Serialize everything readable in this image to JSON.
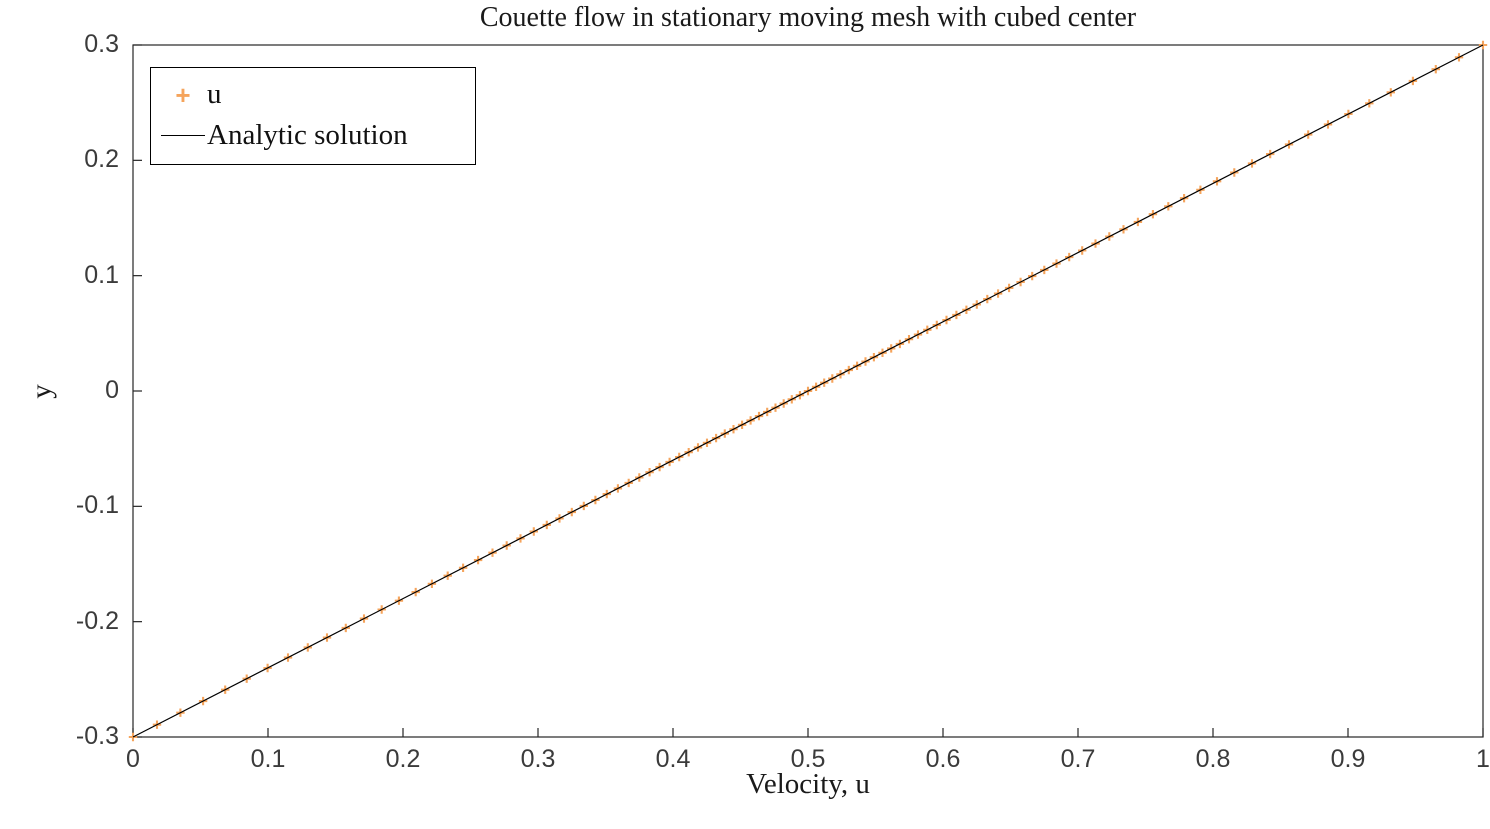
{
  "figure": {
    "background": "#ffffff"
  },
  "style": {
    "axis_color": "#262626",
    "tick_label_color": "#3b3b3b",
    "marker_color": "#F5A45C",
    "line_color": "#000000"
  },
  "chart_data": {
    "type": "scatter",
    "title": "Couette flow in stationary moving mesh with cubed center",
    "xlabel": "Velocity, u",
    "ylabel": "y",
    "xlim": [
      0,
      1
    ],
    "ylim": [
      -0.3,
      0.3
    ],
    "grid": false,
    "x_ticks": [
      0,
      0.1,
      0.2,
      0.3,
      0.4,
      0.5,
      0.6,
      0.7,
      0.8,
      0.9,
      1
    ],
    "x_tick_labels": [
      "0",
      "0.1",
      "0.2",
      "0.3",
      "0.4",
      "0.5",
      "0.6",
      "0.7",
      "0.8",
      "0.9",
      "1"
    ],
    "y_ticks": [
      -0.3,
      -0.2,
      -0.1,
      0,
      0.1,
      0.2,
      0.3
    ],
    "y_tick_labels": [
      "-0.3",
      "-0.2",
      "-0.1",
      "0",
      "0.1",
      "0.2",
      "0.3"
    ],
    "legend": {
      "position": "northwest",
      "entries": [
        {
          "label": "u",
          "marker": "plus",
          "color": "#F5A45C"
        },
        {
          "label": "Analytic solution",
          "marker": "line",
          "color": "#000000"
        }
      ]
    },
    "analytic_line": {
      "slope": 0.6,
      "intercept": -0.3,
      "x_range": [
        0,
        1
      ]
    },
    "series": [
      {
        "name": "u",
        "type": "scatter",
        "marker": "+",
        "color": "#F5A45C",
        "y_rule": "y = slope*u + intercept (markers lie on the analytic line)",
        "u_values": [
          0.0,
          0.0178,
          0.0351,
          0.0519,
          0.0683,
          0.0842,
          0.0997,
          0.1148,
          0.1295,
          0.1437,
          0.1576,
          0.1711,
          0.1842,
          0.197,
          0.2094,
          0.2214,
          0.2331,
          0.2445,
          0.2556,
          0.2663,
          0.2768,
          0.287,
          0.2969,
          0.3065,
          0.3159,
          0.325,
          0.3339,
          0.3425,
          0.351,
          0.3592,
          0.3672,
          0.375,
          0.3827,
          0.3901,
          0.3975,
          0.4046,
          0.4116,
          0.4185,
          0.4252,
          0.4319,
          0.4384,
          0.4448,
          0.4512,
          0.4575,
          0.4637,
          0.4698,
          0.4759,
          0.482,
          0.488,
          0.494,
          0.5,
          0.506,
          0.512,
          0.518,
          0.5241,
          0.5302,
          0.5364,
          0.5426,
          0.5488,
          0.5552,
          0.5616,
          0.5681,
          0.5748,
          0.5815,
          0.5884,
          0.5954,
          0.6026,
          0.6099,
          0.6173,
          0.625,
          0.6328,
          0.6408,
          0.649,
          0.6575,
          0.6661,
          0.675,
          0.6841,
          0.6935,
          0.7031,
          0.713,
          0.7232,
          0.7337,
          0.7444,
          0.7555,
          0.7669,
          0.7786,
          0.7907,
          0.803,
          0.8158,
          0.8289,
          0.8424,
          0.8563,
          0.8705,
          0.8852,
          0.9003,
          0.9158,
          0.9317,
          0.9481,
          0.965,
          0.9822,
          1.0
        ]
      },
      {
        "name": "Analytic solution",
        "type": "line",
        "color": "#000000",
        "x": [
          0,
          1
        ],
        "y": [
          -0.3,
          0.3
        ]
      }
    ]
  }
}
